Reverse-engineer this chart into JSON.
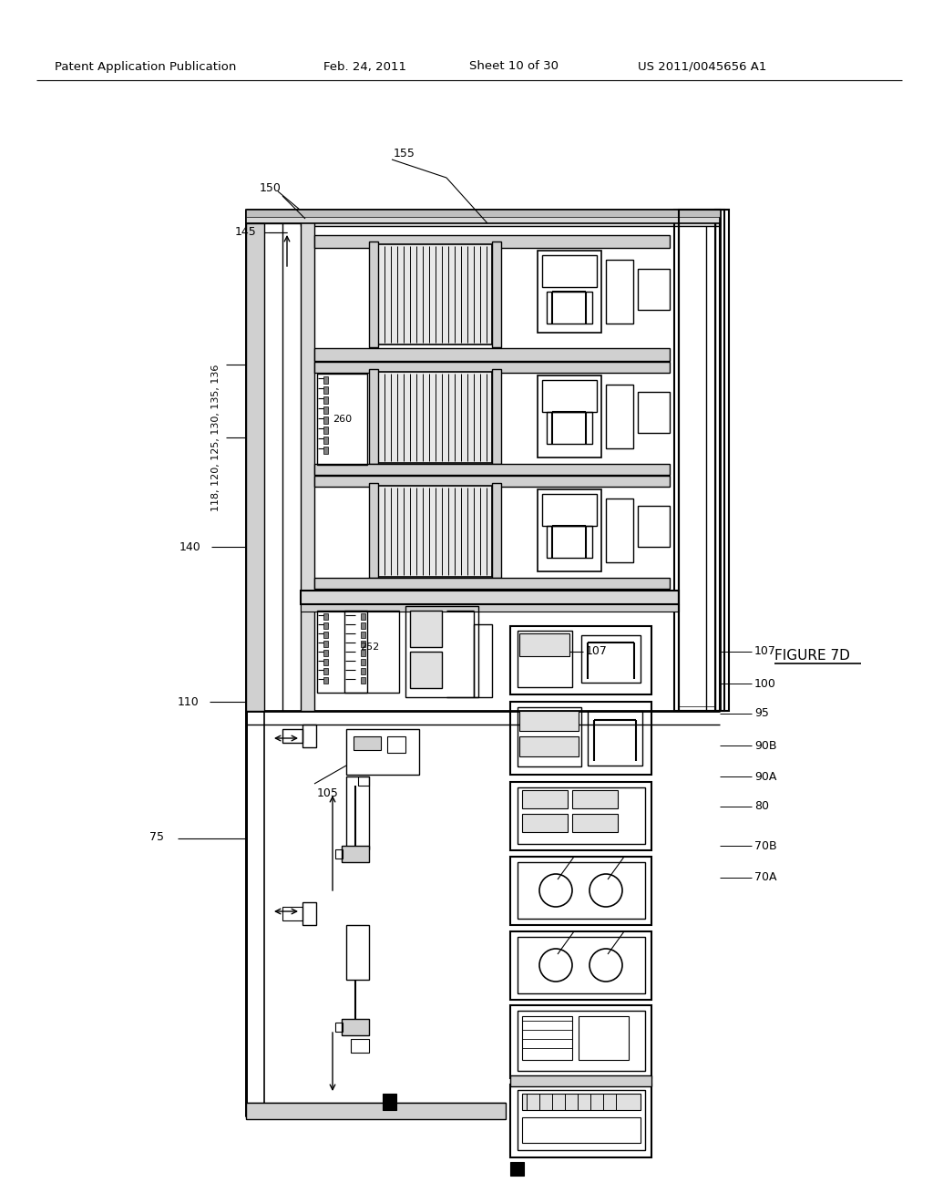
{
  "bg_color": "#ffffff",
  "line_color": "#000000",
  "header_text": "Patent Application Publication",
  "header_date": "Feb. 24, 2011",
  "header_sheet": "Sheet 10 of 30",
  "header_patent": "US 2011/0045656 A1",
  "figure_label": "FIGURE 7D"
}
